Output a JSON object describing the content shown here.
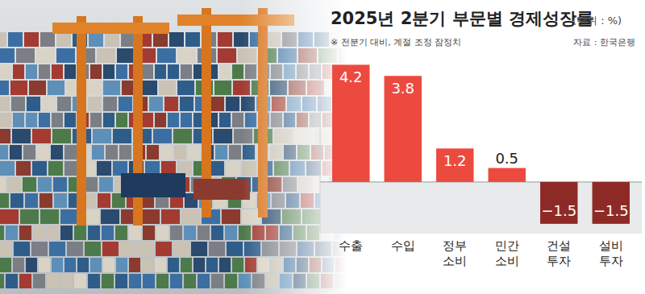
{
  "chart_data": {
    "type": "bar",
    "title": "2025년 2분기 부문별 경제성장률",
    "subtitle": "(단위 : %)",
    "note": "※ 전분기 대비, 계절 조정 잠정치",
    "source": "자료 : 한국은행",
    "categories": [
      "수출",
      "수입",
      "정부 소비",
      "민간 소비",
      "건설 투자",
      "설비 투자"
    ],
    "values": [
      4.2,
      3.8,
      1.2,
      0.5,
      -1.5,
      -1.5
    ],
    "colors": [
      "#ec4a3f",
      "#ec4a3f",
      "#ec4a3f",
      "#ec4a3f",
      "#8e2a26",
      "#8e2a26"
    ],
    "ylim": [
      -1.85,
      4.5
    ],
    "grid": false,
    "data_labels": true,
    "tick_labels": "x"
  }
}
